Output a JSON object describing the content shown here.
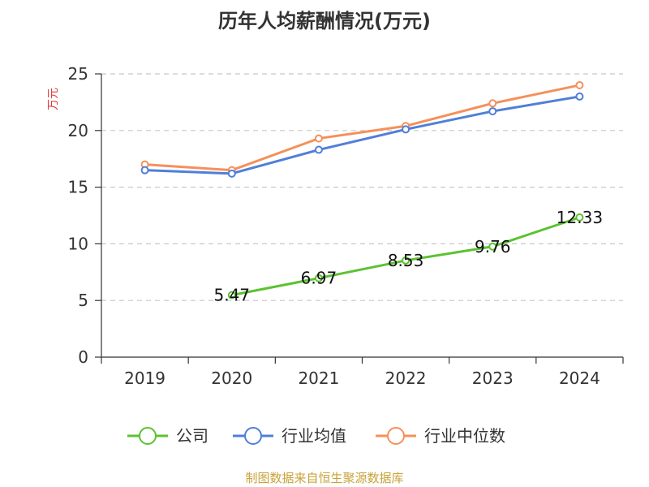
{
  "chart_data": {
    "type": "line",
    "title": "历年人均薪酬情况(万元)",
    "ylabel": "万元",
    "xlabel": "",
    "categories": [
      "2019",
      "2020",
      "2021",
      "2022",
      "2023",
      "2024"
    ],
    "ylim": [
      0,
      25
    ],
    "yticks": [
      0,
      5,
      10,
      15,
      20,
      25
    ],
    "grid": true,
    "legend_position": "bottom",
    "series": [
      {
        "name": "公司",
        "color": "#5cc231",
        "values": [
          null,
          5.47,
          6.97,
          8.53,
          9.76,
          12.33
        ],
        "labels": [
          "",
          "5.47",
          "6.97",
          "8.53",
          "9.76",
          "12.33"
        ]
      },
      {
        "name": "行业均值",
        "color": "#4f7fd9",
        "values": [
          16.5,
          16.2,
          18.3,
          20.1,
          21.7,
          23.0
        ]
      },
      {
        "name": "行业中位数",
        "color": "#f5905a",
        "values": [
          17.0,
          16.5,
          19.3,
          20.4,
          22.4,
          24.0
        ]
      }
    ]
  },
  "source": "制图数据来自恒生聚源数据库"
}
